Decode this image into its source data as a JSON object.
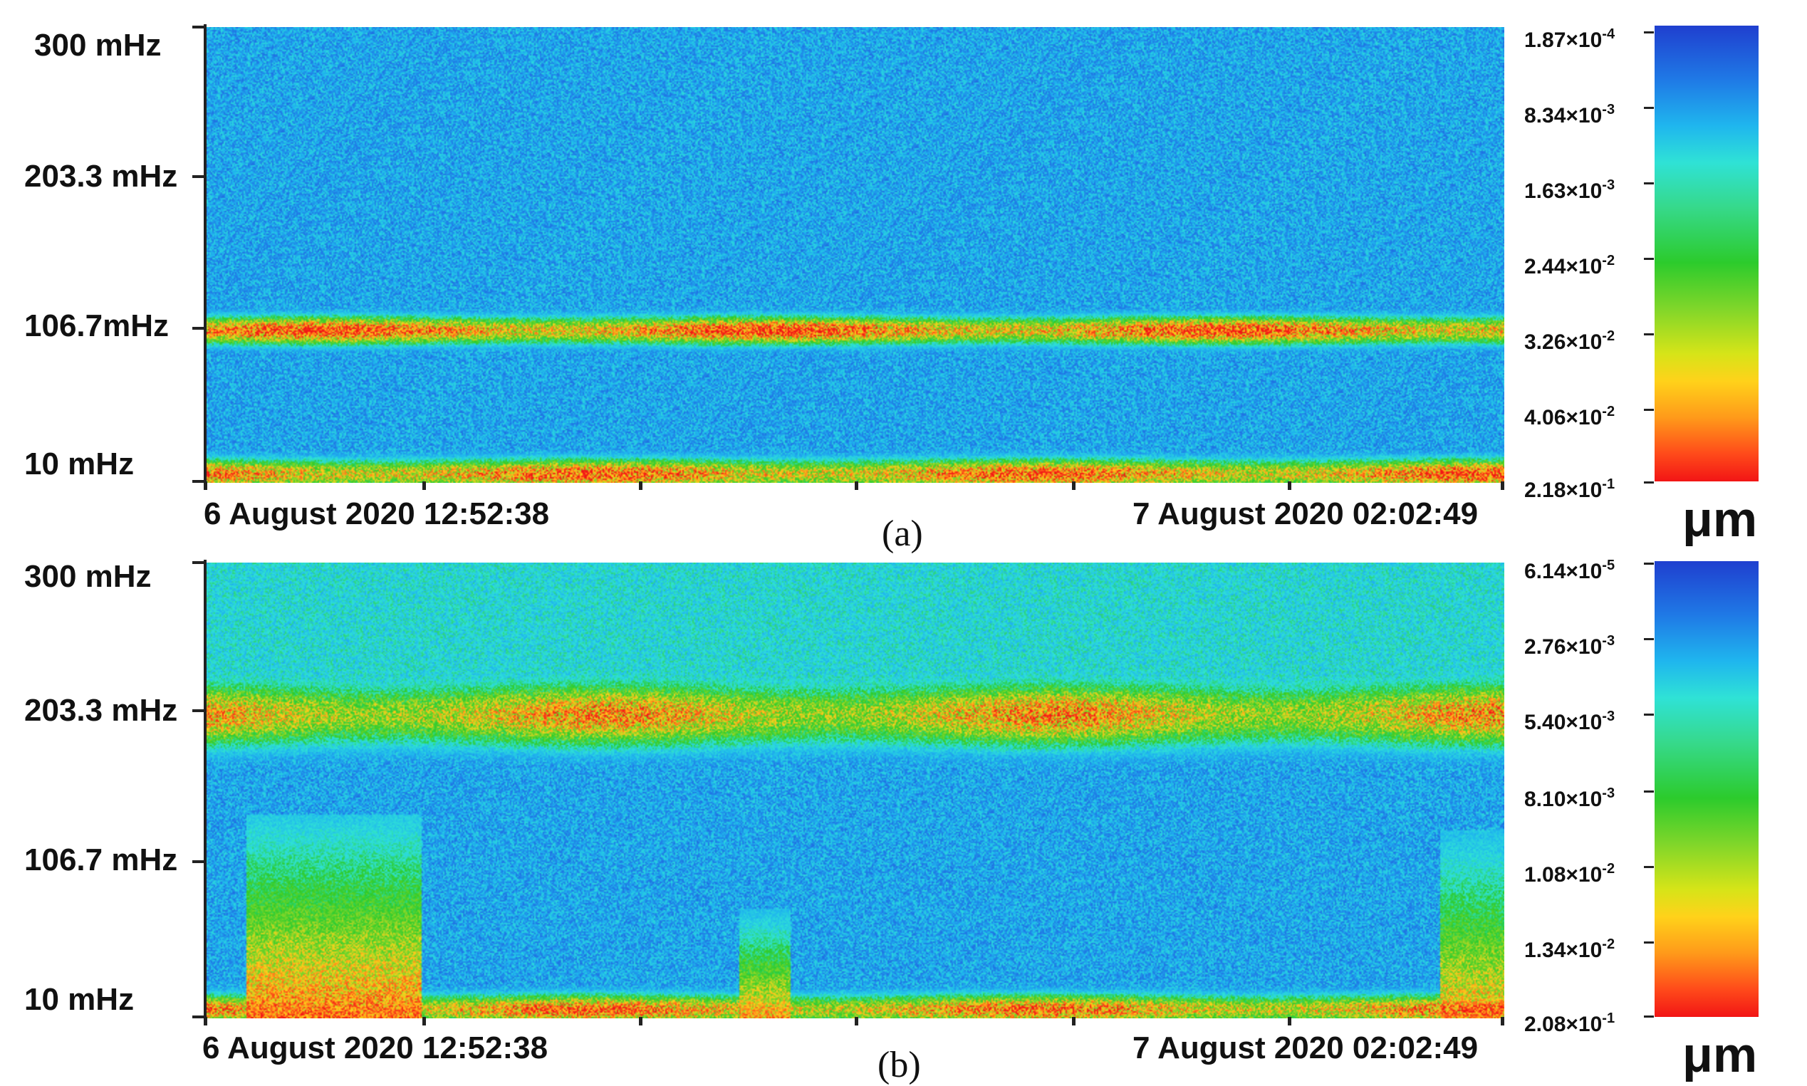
{
  "chart_data": [
    {
      "type": "heatmap",
      "caption": "(a)",
      "y_tick_labels": [
        "300 mHz",
        "203.3 mHz",
        "106.7mHz",
        "10 mHz"
      ],
      "x_tick_labels": [
        "6 August 2020 12:52:38",
        "7 August 2020 02:02:49"
      ],
      "ylim": [
        10,
        300
      ],
      "colorbar": {
        "labels": [
          {
            "m": "1.87",
            "e": "-4"
          },
          {
            "m": "8.34",
            "e": "-3"
          },
          {
            "m": "1.63",
            "e": "-3"
          },
          {
            "m": "2.44",
            "e": "-2"
          },
          {
            "m": "3.26",
            "e": "-2"
          },
          {
            "m": "4.06",
            "e": "-2"
          },
          {
            "m": "2.18",
            "e": "-1"
          }
        ],
        "unit": "μm"
      },
      "bands": [
        {
          "freq": 106.7,
          "level": 0.95,
          "width": 11
        },
        {
          "freq": 15,
          "level": 0.92,
          "width": 12
        }
      ]
    },
    {
      "type": "heatmap",
      "caption": "(b)",
      "y_tick_labels": [
        "300 mHz",
        "203.3 mHz",
        "106.7 mHz",
        "10 mHz"
      ],
      "x_tick_labels": [
        "6 August 2020 12:52:38",
        "7 August 2020 02:02:49"
      ],
      "ylim": [
        10,
        300
      ],
      "colorbar": {
        "labels": [
          {
            "m": "6.14",
            "e": "-5"
          },
          {
            "m": "2.76",
            "e": "-3"
          },
          {
            "m": "5.40",
            "e": "-3"
          },
          {
            "m": "8.10",
            "e": "-3"
          },
          {
            "m": "1.08",
            "e": "-2"
          },
          {
            "m": "1.34",
            "e": "-2"
          },
          {
            "m": "2.08",
            "e": "-1"
          }
        ],
        "unit": "μm"
      },
      "bands": [
        {
          "freq": 203.3,
          "level": 0.85,
          "width": 26
        },
        {
          "freq": 15,
          "level": 0.9,
          "width": 12
        }
      ]
    }
  ],
  "colors": {
    "low": "#1f3fcf",
    "mid": "#2ccb2c",
    "high": "#f21515"
  }
}
